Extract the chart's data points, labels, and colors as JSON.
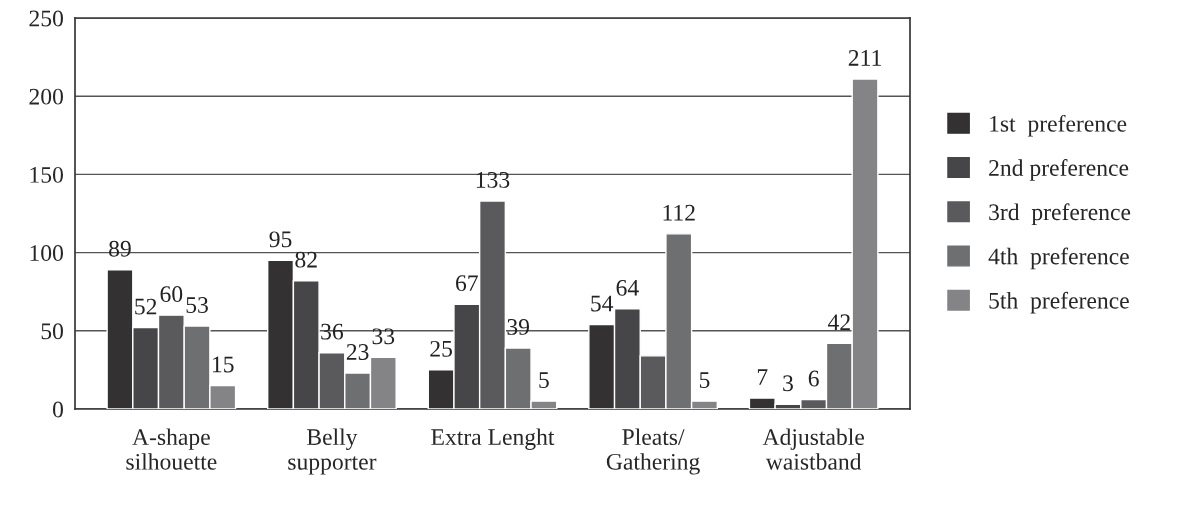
{
  "chart_data": {
    "type": "bar",
    "categories": [
      "A-shape\nsilhouette",
      "Belly\nsupporter",
      "Extra Lenght",
      "Pleats/\nGathering",
      "Adjustable\nwaistband"
    ],
    "series": [
      {
        "name": "1st  preference",
        "color": "#333132",
        "values": [
          89,
          95,
          25,
          54,
          7
        ],
        "value_labels": [
          "89",
          "95",
          "25",
          "54",
          "7"
        ]
      },
      {
        "name": "2nd preference",
        "color": "#464547",
        "values": [
          52,
          82,
          67,
          64,
          3
        ],
        "value_labels": [
          "52",
          "82",
          "67",
          "64",
          "3"
        ]
      },
      {
        "name": "3rd  preference",
        "color": "#5a5a5c",
        "values": [
          60,
          36,
          133,
          34,
          6
        ],
        "value_labels": [
          "60",
          "36",
          "133",
          null,
          "6"
        ]
      },
      {
        "name": "4th  preference",
        "color": "#6e6f71",
        "values": [
          53,
          23,
          39,
          112,
          42
        ],
        "value_labels": [
          "53",
          "23",
          "39",
          "112",
          "42"
        ]
      },
      {
        "name": "5th  preference",
        "color": "#848486",
        "values": [
          15,
          33,
          5,
          5,
          211
        ],
        "value_labels": [
          "15",
          "33",
          "5",
          "5",
          "211"
        ]
      }
    ],
    "ylim": [
      0,
      250
    ],
    "yticks": [
      0,
      50,
      100,
      150,
      200,
      250
    ],
    "grid": "y",
    "legend": "right"
  }
}
